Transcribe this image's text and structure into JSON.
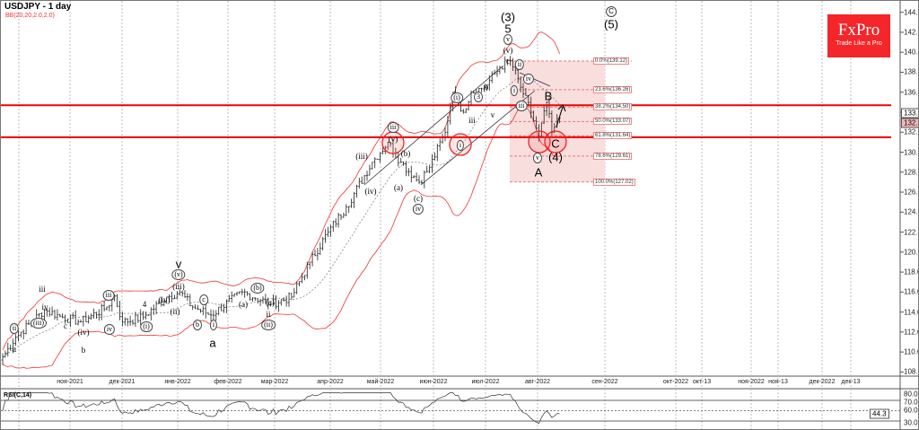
{
  "header": {
    "symbol_title": "USDJPY - 1 day",
    "indicator_label": "BB(20,20,2.0,2.0)",
    "rsi_label": "RSI(C,14)"
  },
  "logo": {
    "brand": "FxPro",
    "tagline": "Trade Like a Pro",
    "color": "#f4262a"
  },
  "chart_data": {
    "type": "candlestick",
    "title": "USDJPY - 1 day",
    "price_axis": {
      "ylim": [
        107,
        145
      ],
      "ticks": [
        "144.00",
        "142.00",
        "140.00",
        "138.00",
        "136.00",
        "134.00",
        "132.00",
        "130.00",
        "128.00",
        "126.00",
        "124.00",
        "122.00",
        "120.00",
        "118.00",
        "116.00",
        "114.00",
        "112.00",
        "110.00",
        "108.00"
      ]
    },
    "time_axis": {
      "ticks": [
        "ноя-2021",
        "дек-2021",
        "янв-2022",
        "фев-2022",
        "мар-2022",
        "апр-2022",
        "май-2022",
        "июн-2022",
        "июл-2022",
        "авг-2022",
        "сен-2022",
        "окт-2022",
        "окт-13",
        "ноя-2022",
        "ноя-13",
        "дек-2022",
        "дек-13"
      ]
    },
    "close_keypoints": [
      [
        0,
        109.5
      ],
      [
        5,
        111.5
      ],
      [
        16,
        114.2
      ],
      [
        23,
        113.5
      ],
      [
        30,
        113
      ],
      [
        40,
        114.5
      ],
      [
        43,
        115.6
      ],
      [
        46,
        113
      ],
      [
        54,
        113.5
      ],
      [
        63,
        115.5
      ],
      [
        68,
        116
      ],
      [
        73,
        114.5
      ],
      [
        80,
        113.7
      ],
      [
        92,
        116
      ],
      [
        103,
        114.8
      ],
      [
        111,
        115.5
      ],
      [
        118,
        119
      ],
      [
        125,
        122
      ],
      [
        132,
        124.5
      ],
      [
        142,
        129
      ],
      [
        148,
        131
      ],
      [
        153,
        129
      ],
      [
        160,
        127
      ],
      [
        164,
        128.5
      ],
      [
        170,
        132
      ],
      [
        173,
        136
      ],
      [
        177,
        134
      ],
      [
        180,
        136
      ],
      [
        185,
        136.5
      ],
      [
        191,
        138.5
      ],
      [
        195,
        139.2
      ],
      [
        199,
        136.5
      ],
      [
        203,
        134
      ],
      [
        206,
        131.6
      ],
      [
        209,
        135
      ],
      [
        211,
        132
      ],
      [
        214,
        133.4
      ]
    ],
    "current_price": "133.44",
    "bid_tag": "132.88",
    "horizontal_levels": [
      134.7,
      131.5
    ],
    "fibonacci": [
      {
        "label": "0.0%(139.12)",
        "price": 139.12
      },
      {
        "label": "23.6%(136.26)",
        "price": 136.26
      },
      {
        "label": "38.2%(134.50)",
        "price": 134.5
      },
      {
        "label": "50.0%(133.07)",
        "price": 133.07
      },
      {
        "label": "61.8%(131.64)",
        "price": 131.64
      },
      {
        "label": "78.6%(129.61)",
        "price": 129.61
      },
      {
        "label": "100.0%(127.02)",
        "price": 127.02
      }
    ],
    "rsi": {
      "period": 14,
      "ticks": [
        "80.0",
        "70.0",
        "60.0",
        "44.3",
        "30.0"
      ],
      "current": "44.3",
      "levels": [
        70,
        50,
        30
      ]
    },
    "wave_labels": [
      "(3)",
      "5",
      "v",
      "(v)",
      "c",
      "C",
      "(5)",
      "ii",
      "i",
      "iv",
      "iii",
      "v",
      "A",
      "B",
      "C",
      "(4)",
      "iii",
      "(v)",
      "(iii)",
      "(iv)",
      "(a)",
      "(b)",
      "(c)",
      "iv",
      "(i)",
      "i",
      "ii",
      "a",
      "b",
      "iii",
      "3",
      "v",
      "(v)",
      "(iii)",
      "(iv)",
      "(ii)",
      "(i)",
      "4",
      "a",
      "b",
      "c",
      "i",
      "(b)",
      "(a)",
      "(c)",
      "ii",
      "(ii)",
      "iii",
      "iv",
      "(iii)",
      "(iv)",
      "c",
      "b",
      "iii",
      "iv",
      "v"
    ]
  }
}
